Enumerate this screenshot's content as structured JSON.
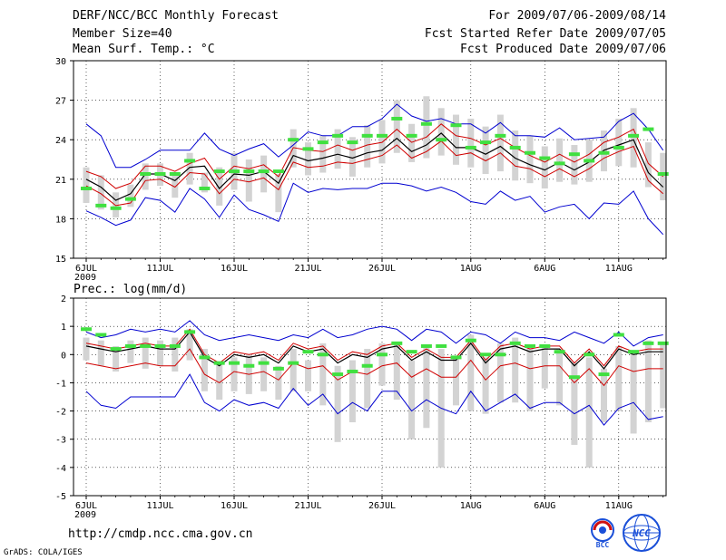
{
  "header": {
    "title": "DERF/NCC/BCC Monthly Forecast",
    "member_size": "Member Size=40",
    "variable": "Mean Surf. Temp.: °C",
    "forecast_period": "For 2009/07/06-2009/08/14",
    "fcst_started": "Fcst Started Refer Date 2009/07/05",
    "fcst_produced": "Fcst Produced Date 2009/07/06"
  },
  "footer": {
    "url": "http://cmdp.ncc.cma.gov.cn",
    "credit": "GrADS: COLA/IGES",
    "logo_bcc": "BCC",
    "logo_ncc": "NCC"
  },
  "colors": {
    "bar": "#d3d3d3",
    "obs": "#40e040",
    "envelope": "#0000d0",
    "spread": "#d00000",
    "mean": "#000000",
    "grid": "#000000"
  },
  "chart_data": [
    {
      "type": "box-envelope",
      "title": "Mean Surf. Temp.: °C",
      "ylim": [
        15,
        30
      ],
      "yticks": [
        15,
        18,
        21,
        24,
        27,
        30
      ],
      "xtick_labels": [
        "6JUL",
        "11JUL",
        "16JUL",
        "21JUL",
        "26JUL",
        "1AUG",
        "6AUG",
        "11AUG"
      ],
      "xtick_day_index": [
        0,
        5,
        10,
        15,
        20,
        26,
        31,
        36
      ],
      "x_sublabel": "2009",
      "days": 40,
      "series": [
        {
          "name": "max",
          "values": [
            25.2,
            24.3,
            21.9,
            21.9,
            22.5,
            23.2,
            23.2,
            23.2,
            24.5,
            23.3,
            22.8,
            23.3,
            23.7,
            22.7,
            23.6,
            24.6,
            24.3,
            24.3,
            25.0,
            25.0,
            25.6,
            26.7,
            25.8,
            25.4,
            25.6,
            25.2,
            25.2,
            24.5,
            25.3,
            24.3,
            24.3,
            24.2,
            24.9,
            24.0,
            24.1,
            24.2,
            25.4,
            26.0,
            24.8,
            23.2
          ]
        },
        {
          "name": "upper",
          "values": [
            21.6,
            21.2,
            20.3,
            20.7,
            22.0,
            22.0,
            21.6,
            22.2,
            22.6,
            21.0,
            22.0,
            21.8,
            22.1,
            21.2,
            23.4,
            23.2,
            23.1,
            23.6,
            23.2,
            23.6,
            23.8,
            24.8,
            23.8,
            24.2,
            25.2,
            24.3,
            24.1,
            23.6,
            24.1,
            23.4,
            22.8,
            22.3,
            22.9,
            22.3,
            22.9,
            23.8,
            24.2,
            24.8,
            22.2,
            21.2
          ]
        },
        {
          "name": "mean",
          "values": [
            21.0,
            20.4,
            19.4,
            19.9,
            21.4,
            21.4,
            20.9,
            21.9,
            22.0,
            20.3,
            21.4,
            21.3,
            21.6,
            20.7,
            22.8,
            22.4,
            22.6,
            22.9,
            22.6,
            23.0,
            23.2,
            24.1,
            23.1,
            23.6,
            24.5,
            23.4,
            23.4,
            22.9,
            23.5,
            22.6,
            22.1,
            21.7,
            22.3,
            21.7,
            22.3,
            23.2,
            23.6,
            24.0,
            21.5,
            20.4
          ]
        },
        {
          "name": "lower",
          "values": [
            20.5,
            19.9,
            19.0,
            19.2,
            20.9,
            21.0,
            20.4,
            21.5,
            21.4,
            19.9,
            21.0,
            20.8,
            21.1,
            20.2,
            22.3,
            21.9,
            22.0,
            22.3,
            22.2,
            22.5,
            22.8,
            23.6,
            22.6,
            23.1,
            23.9,
            22.8,
            23.0,
            22.4,
            23.0,
            22.0,
            21.8,
            21.2,
            21.8,
            21.2,
            21.8,
            22.6,
            23.1,
            23.5,
            20.9,
            19.9
          ]
        },
        {
          "name": "min",
          "values": [
            18.6,
            18.1,
            17.5,
            17.9,
            19.6,
            19.4,
            18.5,
            20.3,
            19.5,
            18.1,
            19.8,
            18.7,
            18.3,
            17.8,
            20.7,
            20.0,
            20.3,
            20.2,
            20.3,
            20.3,
            20.7,
            20.7,
            20.5,
            20.1,
            20.4,
            20.0,
            19.3,
            19.1,
            20.1,
            19.4,
            19.7,
            18.5,
            18.9,
            19.1,
            18.0,
            19.2,
            19.1,
            20.1,
            18.0,
            16.8
          ]
        },
        {
          "name": "obs",
          "values": [
            20.3,
            19.0,
            18.8,
            19.5,
            21.4,
            21.4,
            21.4,
            22.4,
            20.3,
            21.6,
            21.6,
            21.6,
            21.6,
            21.6,
            24.0,
            23.3,
            23.8,
            24.3,
            23.8,
            24.3,
            24.3,
            25.6,
            24.3,
            25.2,
            24.0,
            25.1,
            23.4,
            23.8,
            24.3,
            23.4,
            23.0,
            22.6,
            22.2,
            22.9,
            22.4,
            23.0,
            23.4,
            24.3,
            24.8,
            21.4
          ]
        }
      ],
      "bar_range": [
        [
          19.2,
          21.9
        ],
        [
          18.7,
          21.3
        ],
        [
          18.1,
          20.0
        ],
        [
          18.9,
          20.6
        ],
        [
          20.2,
          22.2
        ],
        [
          20.5,
          22.2
        ],
        [
          19.6,
          21.5
        ],
        [
          20.6,
          23.0
        ],
        [
          20.0,
          21.5
        ],
        [
          19.0,
          21.9
        ],
        [
          20.2,
          23.0
        ],
        [
          19.3,
          22.5
        ],
        [
          20.0,
          22.8
        ],
        [
          18.5,
          21.4
        ],
        [
          21.9,
          24.8
        ],
        [
          21.3,
          23.8
        ],
        [
          21.5,
          24.3
        ],
        [
          21.8,
          24.8
        ],
        [
          21.2,
          24.2
        ],
        [
          21.9,
          25.1
        ],
        [
          22.2,
          25.5
        ],
        [
          23.0,
          27.0
        ],
        [
          22.3,
          25.2
        ],
        [
          22.6,
          27.3
        ],
        [
          22.8,
          26.4
        ],
        [
          22.1,
          25.9
        ],
        [
          21.9,
          25.6
        ],
        [
          21.4,
          25.0
        ],
        [
          21.6,
          25.9
        ],
        [
          20.9,
          24.7
        ],
        [
          20.7,
          24.3
        ],
        [
          20.3,
          23.5
        ],
        [
          20.8,
          24.1
        ],
        [
          20.6,
          23.6
        ],
        [
          20.8,
          24.0
        ],
        [
          21.6,
          24.7
        ],
        [
          22.0,
          25.6
        ],
        [
          21.9,
          26.4
        ],
        [
          20.4,
          23.8
        ],
        [
          19.4,
          23.0
        ]
      ]
    },
    {
      "type": "box-envelope",
      "title": "Prec.: log(mm/d)",
      "ylim": [
        -5,
        2
      ],
      "yticks": [
        -5,
        -4,
        -3,
        -2,
        -1,
        0,
        1,
        2
      ],
      "xtick_labels": [
        "6JUL",
        "11JUL",
        "16JUL",
        "21JUL",
        "26JUL",
        "1AUG",
        "6AUG",
        "11AUG"
      ],
      "xtick_day_index": [
        0,
        5,
        10,
        15,
        20,
        26,
        31,
        36
      ],
      "x_sublabel": "2009",
      "days": 40,
      "series": [
        {
          "name": "max",
          "values": [
            0.8,
            0.6,
            0.7,
            0.9,
            0.8,
            0.9,
            0.8,
            1.2,
            0.7,
            0.5,
            0.6,
            0.7,
            0.6,
            0.5,
            0.7,
            0.6,
            0.9,
            0.6,
            0.7,
            0.9,
            1.0,
            0.9,
            0.5,
            0.9,
            0.8,
            0.4,
            0.8,
            0.7,
            0.4,
            0.8,
            0.6,
            0.6,
            0.5,
            0.8,
            0.6,
            0.4,
            0.8,
            0.3,
            0.6,
            0.7
          ]
        },
        {
          "name": "upper",
          "values": [
            0.4,
            0.3,
            0.2,
            0.3,
            0.4,
            0.3,
            0.3,
            0.9,
            0.0,
            -0.3,
            0.1,
            0.0,
            0.1,
            -0.2,
            0.4,
            0.2,
            0.3,
            -0.2,
            0.1,
            0.0,
            0.3,
            0.4,
            -0.1,
            0.2,
            -0.1,
            -0.1,
            0.5,
            -0.2,
            0.3,
            0.4,
            0.2,
            0.3,
            0.3,
            -0.3,
            0.2,
            -0.4,
            0.3,
            0.1,
            0.2,
            0.2
          ]
        },
        {
          "name": "mean",
          "values": [
            0.3,
            0.2,
            0.1,
            0.2,
            0.3,
            0.2,
            0.2,
            0.8,
            -0.1,
            -0.4,
            0.0,
            -0.1,
            0.0,
            -0.3,
            0.3,
            0.1,
            0.2,
            -0.3,
            0.0,
            -0.1,
            0.2,
            0.3,
            -0.2,
            0.1,
            -0.2,
            -0.2,
            0.4,
            -0.3,
            0.2,
            0.3,
            0.1,
            0.2,
            0.2,
            -0.4,
            0.1,
            -0.5,
            0.2,
            0.0,
            0.1,
            0.1
          ]
        },
        {
          "name": "lower",
          "values": [
            -0.3,
            -0.4,
            -0.5,
            -0.4,
            -0.3,
            -0.4,
            -0.4,
            0.2,
            -0.7,
            -1.0,
            -0.6,
            -0.7,
            -0.6,
            -0.9,
            -0.3,
            -0.5,
            -0.4,
            -0.9,
            -0.6,
            -0.7,
            -0.4,
            -0.3,
            -0.8,
            -0.5,
            -0.8,
            -0.8,
            -0.2,
            -0.9,
            -0.4,
            -0.3,
            -0.5,
            -0.4,
            -0.4,
            -1.0,
            -0.5,
            -1.1,
            -0.4,
            -0.6,
            -0.5,
            -0.5
          ]
        },
        {
          "name": "min",
          "values": [
            -1.3,
            -1.8,
            -1.9,
            -1.5,
            -1.5,
            -1.5,
            -1.5,
            -0.7,
            -1.7,
            -2.0,
            -1.6,
            -1.8,
            -1.7,
            -1.9,
            -1.2,
            -1.8,
            -1.4,
            -2.1,
            -1.7,
            -2.0,
            -1.3,
            -1.3,
            -2.0,
            -1.6,
            -1.9,
            -2.1,
            -1.3,
            -2.0,
            -1.7,
            -1.4,
            -1.9,
            -1.7,
            -1.7,
            -2.1,
            -1.8,
            -2.5,
            -1.9,
            -1.7,
            -2.3,
            -2.2
          ]
        },
        {
          "name": "obs",
          "values": [
            0.9,
            0.7,
            0.2,
            0.3,
            0.3,
            0.3,
            0.3,
            0.8,
            -0.1,
            -0.3,
            -0.3,
            -0.4,
            -0.3,
            -0.5,
            -0.3,
            0.1,
            0.0,
            -0.7,
            -0.6,
            -0.4,
            0.0,
            0.4,
            0.1,
            0.3,
            0.3,
            -0.1,
            0.5,
            0.0,
            0.0,
            0.4,
            0.3,
            0.3,
            0.1,
            -0.8,
            0.0,
            -0.7,
            0.7,
            0.1,
            0.4,
            0.4
          ]
        }
      ],
      "bar_range": [
        [
          -0.2,
          0.6
        ],
        [
          -0.4,
          0.5
        ],
        [
          -0.6,
          0.3
        ],
        [
          -0.3,
          0.5
        ],
        [
          -0.5,
          0.6
        ],
        [
          -0.4,
          0.5
        ],
        [
          -0.6,
          0.6
        ],
        [
          -0.2,
          0.9
        ],
        [
          -1.3,
          0.2
        ],
        [
          -1.6,
          -0.3
        ],
        [
          -1.3,
          -0.1
        ],
        [
          -1.4,
          0.0
        ],
        [
          -1.3,
          -0.1
        ],
        [
          -1.6,
          -0.4
        ],
        [
          -1.3,
          0.2
        ],
        [
          -1.3,
          -0.2
        ],
        [
          -1.8,
          0.4
        ],
        [
          -3.1,
          -0.4
        ],
        [
          -2.4,
          -0.2
        ],
        [
          -1.9,
          0.2
        ],
        [
          -1.1,
          0.4
        ],
        [
          -1.6,
          0.4
        ],
        [
          -3.0,
          -0.2
        ],
        [
          -2.6,
          0.3
        ],
        [
          -4.0,
          0.2
        ],
        [
          -1.8,
          -0.1
        ],
        [
          -2.0,
          0.7
        ],
        [
          -2.1,
          -0.1
        ],
        [
          -1.7,
          0.4
        ],
        [
          -1.7,
          0.6
        ],
        [
          -2.0,
          0.3
        ],
        [
          -1.2,
          0.3
        ],
        [
          -1.8,
          0.2
        ],
        [
          -3.2,
          -0.3
        ],
        [
          -4.0,
          -0.1
        ],
        [
          -2.4,
          -0.5
        ],
        [
          -2.0,
          0.3
        ],
        [
          -2.8,
          0.1
        ],
        [
          -2.4,
          0.5
        ],
        [
          -1.9,
          0.4
        ]
      ]
    }
  ]
}
